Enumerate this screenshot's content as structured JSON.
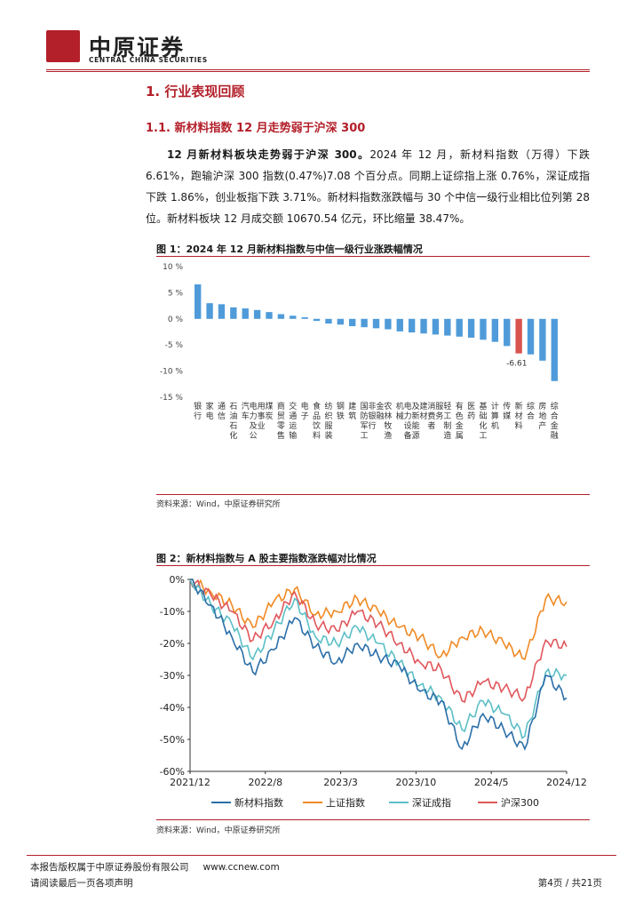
{
  "header": {
    "logo_cn": "中原证券",
    "logo_en": "CENTRAL CHINA SECURITIES"
  },
  "section": {
    "h1": "1. 行业表现回顾",
    "h2": "1.1. 新材料指数 12 月走势弱于沪深 300",
    "lead_bold": "12 月新材料板块走势弱于沪深 300。",
    "body": "2024 年 12 月，新材料指数（万得）下跌 6.61%，跑输沪深 300 指数(0.47%)7.08 个百分点。同期上证综指上涨 0.76%，深证成指下跌 1.86%，创业板指下跌 3.71%。新材料指数涨跌幅与 30 个中信一级行业相比位列第 28 位。新材料板块 12 月成交额 10670.54 亿元，环比缩量 38.47%。"
  },
  "figure1": {
    "title": "图 1：2024 年 12 月新材料指数与中信一级行业涨跌幅情况",
    "source": "资料来源：Wind，中原证券研究所"
  },
  "figure2": {
    "title": "图 2：新材料指数与 A 股主要指数涨跌幅对比情况",
    "source": "资料来源：Wind，中原证券研究所"
  },
  "footer": {
    "copyright": "本报告版权属于中原证券股份有限公司",
    "website": "www.ccnew.com",
    "disclaimer": "请阅读最后一页各项声明",
    "page": "第4页 / 共21页"
  },
  "chart_data": [
    {
      "type": "bar",
      "title": "2024 年 12 月新材料指数与中信一级行业涨跌幅情况",
      "ylabel": "%",
      "ylim": [
        -15,
        10
      ],
      "yticks": [
        10,
        5,
        0,
        -5,
        -10,
        -15
      ],
      "ytick_labels": [
        "10 %",
        "5 %",
        "0 %",
        "-5 %",
        "-10 %",
        "-15 %"
      ],
      "categories": [
        "银行",
        "家电",
        "通信",
        "石油石化",
        "汽车",
        "电力及公用事业",
        "煤炭",
        "商贸零售",
        "交通运输",
        "电子",
        "食品饮料",
        "纺织服装",
        "钢铁",
        "建筑",
        "国防军工",
        "非银行金融",
        "农林牧渔",
        "机械",
        "电力设备及新能源",
        "建材",
        "消费者服务",
        "轻工制造",
        "有色金属",
        "医药",
        "基础化工",
        "计算机",
        "传媒",
        "新材料",
        "综合",
        "房地产",
        "综合金融"
      ],
      "values": [
        6.6,
        3.0,
        2.8,
        2.2,
        2.0,
        1.7,
        1.3,
        0.9,
        0.6,
        0.3,
        -0.4,
        -0.9,
        -1.1,
        -1.4,
        -1.6,
        -1.8,
        -2.0,
        -2.4,
        -2.6,
        -2.8,
        -3.0,
        -3.2,
        -3.4,
        -3.6,
        -4.0,
        -4.4,
        -5.2,
        -6.61,
        -6.8,
        -8.0,
        -11.9
      ],
      "highlight": "新材料",
      "annotation": "-6.61",
      "colors": {
        "default": "#4f9bd9",
        "highlight": "#d9534f"
      }
    },
    {
      "type": "line",
      "title": "新材料指数与 A 股主要指数涨跌幅对比情况",
      "ylim": [
        -60,
        0
      ],
      "yticks": [
        0,
        -10,
        -20,
        -30,
        -40,
        -50,
        -60
      ],
      "ytick_labels": [
        "0%",
        "-10%",
        "-20%",
        "-30%",
        "-40%",
        "-50%",
        "-60%"
      ],
      "xtick_labels": [
        "2021/12",
        "2022/8",
        "2023/3",
        "2023/10",
        "2024/5",
        "2024/12"
      ],
      "x": [
        0,
        2,
        4,
        6,
        8,
        10,
        12,
        14,
        16,
        18,
        20,
        22,
        24,
        26,
        28,
        30,
        32,
        34,
        36
      ],
      "series": [
        {
          "name": "新材料指数",
          "color": "#2b6fa8",
          "values": [
            0,
            -8,
            -18,
            -29,
            -22,
            -12,
            -21,
            -26,
            -20,
            -24,
            -27,
            -35,
            -38,
            -53,
            -42,
            -47,
            -53,
            -30,
            -37
          ]
        },
        {
          "name": "上证指数",
          "color": "#f08a24",
          "values": [
            0,
            -4,
            -8,
            -15,
            -7,
            -3,
            -11,
            -10,
            -6,
            -10,
            -15,
            -18,
            -24,
            -18,
            -16,
            -20,
            -25,
            -6,
            -7
          ]
        },
        {
          "name": "深证成指",
          "color": "#5bbfc6",
          "values": [
            0,
            -8,
            -14,
            -25,
            -16,
            -6,
            -18,
            -20,
            -15,
            -20,
            -26,
            -33,
            -37,
            -47,
            -38,
            -42,
            -49,
            -29,
            -30
          ]
        },
        {
          "name": "沪深300",
          "color": "#e0575b",
          "values": [
            0,
            -5,
            -10,
            -19,
            -13,
            -4,
            -14,
            -16,
            -10,
            -14,
            -20,
            -26,
            -28,
            -38,
            -32,
            -34,
            -37,
            -19,
            -21
          ]
        }
      ],
      "legend": [
        "新材料指数",
        "上证指数",
        "深证成指",
        "沪深300"
      ],
      "legend_position": "bottom"
    }
  ]
}
